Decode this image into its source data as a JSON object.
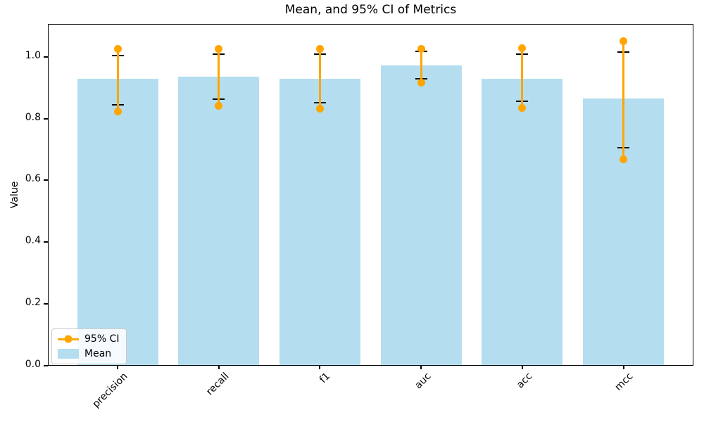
{
  "chart_data": {
    "type": "bar",
    "title": "Mean, and 95% CI of Metrics",
    "xlabel": "",
    "ylabel": "Value",
    "categories": [
      "precision",
      "recall",
      "f1",
      "auc",
      "acc",
      "mcc"
    ],
    "series": [
      {
        "name": "Mean",
        "role": "bars",
        "color": "#B4DEF0",
        "values": [
          0.929,
          0.935,
          0.929,
          0.973,
          0.929,
          0.865
        ]
      },
      {
        "name": "95% CI",
        "role": "ci-range-with-dots",
        "color": "#FFA500",
        "low": [
          0.823,
          0.842,
          0.831,
          0.916,
          0.834,
          0.669
        ],
        "high": [
          1.026,
          1.026,
          1.026,
          1.026,
          1.027,
          1.051
        ]
      },
      {
        "name": "error-caps",
        "role": "black-error-caps",
        "color": "#000000",
        "low": [
          0.845,
          0.863,
          0.851,
          0.929,
          0.855,
          0.706
        ],
        "high": [
          1.003,
          1.009,
          1.008,
          1.017,
          1.009,
          1.015
        ]
      }
    ],
    "ylim": [
      0,
      1.106
    ],
    "ytick_labels": [
      "0.0",
      "0.2",
      "0.4",
      "0.6",
      "0.8",
      "1.0"
    ],
    "ytick_values": [
      0.0,
      0.2,
      0.4,
      0.6,
      0.8,
      1.0
    ],
    "grid": false,
    "legend": {
      "position": "lower-left",
      "entries": [
        "95% CI",
        "Mean"
      ]
    }
  }
}
